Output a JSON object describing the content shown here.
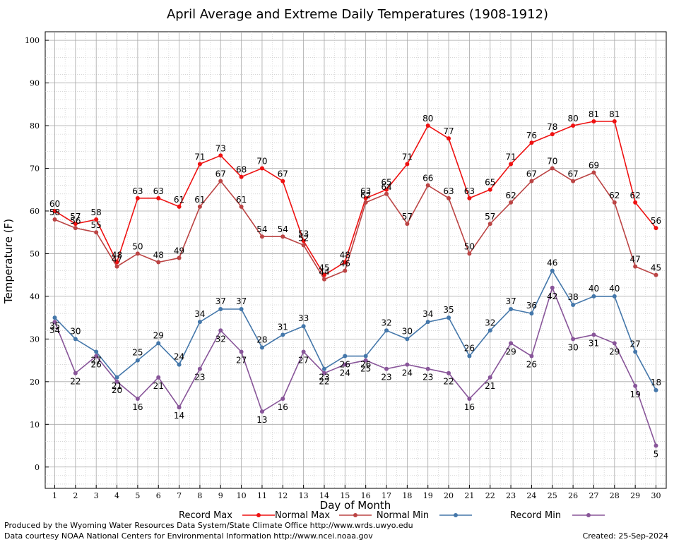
{
  "chart_data": {
    "type": "line",
    "title": "April Average and Extreme Daily Temperatures (1908-1912)",
    "xlabel": "Day of Month",
    "ylabel": "Temperature (F)",
    "ylim": [
      -5,
      102
    ],
    "yticks": [
      0,
      10,
      20,
      30,
      40,
      50,
      60,
      70,
      80,
      90,
      100
    ],
    "grid": true,
    "legend_position": "bottom",
    "x": [
      1,
      2,
      3,
      4,
      5,
      6,
      7,
      8,
      9,
      10,
      11,
      12,
      13,
      14,
      15,
      16,
      17,
      18,
      19,
      20,
      21,
      22,
      23,
      24,
      25,
      26,
      27,
      28,
      29,
      30
    ],
    "series": [
      {
        "name": "Record Max",
        "color": "#ee1111",
        "values": [
          60,
          57,
          58,
          48,
          63,
          63,
          61,
          71,
          73,
          68,
          70,
          67,
          53,
          45,
          48,
          63,
          65,
          71,
          80,
          77,
          63,
          65,
          71,
          76,
          78,
          80,
          81,
          81,
          62,
          56
        ]
      },
      {
        "name": "Normal Max",
        "color": "#bb4444",
        "values": [
          58,
          56,
          55,
          47,
          50,
          48,
          49,
          61,
          67,
          61,
          54,
          54,
          52,
          44,
          46,
          62,
          64,
          57,
          66,
          63,
          50,
          57,
          62,
          67,
          70,
          67,
          69,
          62,
          47,
          45
        ]
      },
      {
        "name": "Normal Min",
        "color": "#4477aa",
        "values": [
          35,
          30,
          27,
          21,
          25,
          29,
          24,
          34,
          37,
          37,
          28,
          31,
          33,
          23,
          26,
          26,
          32,
          30,
          34,
          35,
          26,
          32,
          37,
          36,
          46,
          38,
          40,
          40,
          27,
          18
        ]
      },
      {
        "name": "Record Min",
        "color": "#885599",
        "values": [
          34,
          22,
          26,
          20,
          16,
          21,
          14,
          23,
          32,
          27,
          13,
          16,
          27,
          22,
          24,
          25,
          23,
          24,
          23,
          22,
          16,
          21,
          29,
          26,
          42,
          30,
          31,
          29,
          19,
          5
        ]
      }
    ]
  },
  "footer": {
    "produced_by": "Produced by the Wyoming Water Resources Data System/State Climate Office http://www.wrds.uwyo.edu",
    "courtesy": "Data courtesy NOAA National Centers for Environmental Information http://www.ncei.noaa.gov",
    "created": "Created: 25-Sep-2024"
  }
}
